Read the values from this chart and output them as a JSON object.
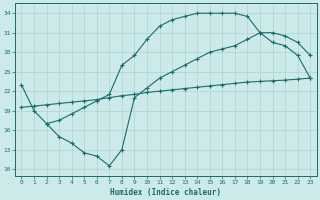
{
  "xlabel": "Humidex (Indice chaleur)",
  "bg_color": "#cceaea",
  "line_color": "#1a6b6b",
  "grid_color": "#b0d8d8",
  "xlim": [
    -0.5,
    23.5
  ],
  "ylim": [
    9,
    35.5
  ],
  "yticks": [
    10,
    13,
    16,
    19,
    22,
    25,
    28,
    31,
    34
  ],
  "xticks": [
    0,
    1,
    2,
    3,
    4,
    5,
    6,
    7,
    8,
    9,
    10,
    11,
    12,
    13,
    14,
    15,
    16,
    17,
    18,
    19,
    20,
    21,
    22,
    23
  ],
  "curve1_x": [
    0,
    1,
    2,
    3,
    4,
    5,
    6,
    7,
    8,
    9,
    10,
    11,
    12,
    13,
    14,
    15,
    16,
    17,
    18,
    19,
    20,
    21,
    22,
    23
  ],
  "curve1_y": [
    23,
    19,
    17,
    17.5,
    18.5,
    19.5,
    20.5,
    21.5,
    26,
    27.5,
    30,
    32,
    33,
    33.5,
    34,
    34,
    34,
    34,
    33.5,
    31,
    29.5,
    29,
    27.5,
    24
  ],
  "curve2_x": [
    0,
    1,
    2,
    3,
    4,
    5,
    6,
    7,
    8,
    9,
    10,
    11,
    12,
    13,
    14,
    15,
    16,
    17,
    18,
    19,
    20,
    21,
    22,
    23
  ],
  "curve2_y": [
    19.5,
    19.7,
    19.9,
    20.1,
    20.3,
    20.5,
    20.7,
    21.0,
    21.3,
    21.5,
    21.8,
    22.0,
    22.2,
    22.4,
    22.6,
    22.8,
    23.0,
    23.2,
    23.4,
    23.5,
    23.6,
    23.7,
    23.85,
    24.0
  ],
  "curve3_x": [
    2,
    3,
    4,
    5,
    6,
    7,
    8,
    9,
    10,
    11,
    12,
    13,
    14,
    15,
    16,
    17,
    18,
    19,
    20,
    21,
    22,
    23
  ],
  "curve3_y": [
    17,
    15,
    14,
    12.5,
    12,
    10.5,
    13,
    21,
    22.5,
    24,
    25,
    26,
    27,
    28,
    28.5,
    29,
    30,
    31,
    31,
    30.5,
    29.5,
    27.5
  ]
}
